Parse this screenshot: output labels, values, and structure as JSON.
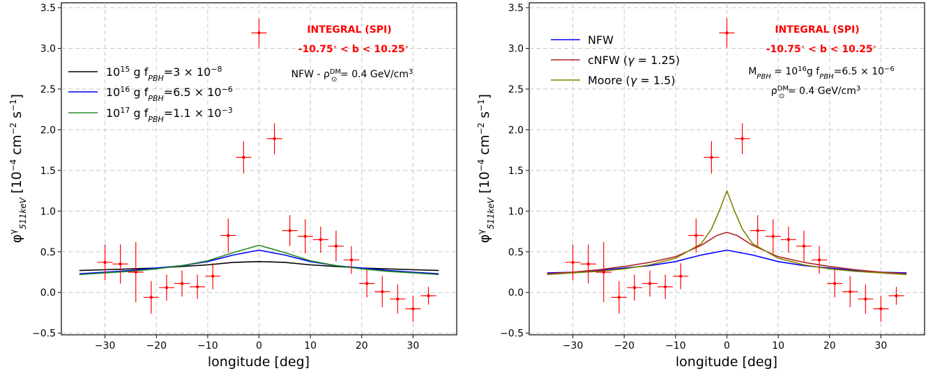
{
  "colors": {
    "data_points": "#ff0000",
    "annotation": "#ff0000",
    "grid": "#c8c8c8"
  },
  "chart_data": [
    {
      "type": "line",
      "xlabel": "longitude [deg]",
      "ylabel": "φ^γ_511keV [10^-4 cm^-2 s^-1]",
      "xlim": [
        -38.5,
        38.5
      ],
      "ylim": [
        -0.52,
        3.56
      ],
      "xticks": [
        -30,
        -20,
        -10,
        0,
        10,
        20,
        30
      ],
      "xtick_labels": [
        "−30",
        "−20",
        "−10",
        "0",
        "10",
        "20",
        "30"
      ],
      "yticks": [
        -0.5,
        0.0,
        0.5,
        1.0,
        1.5,
        2.0,
        2.5,
        3.0,
        3.5
      ],
      "ytick_labels": [
        "−0.5",
        "0.0",
        "0.5",
        "1.0",
        "1.5",
        "2.0",
        "2.5",
        "3.0",
        "3.5"
      ],
      "grid": true,
      "legend_position": "upper-left",
      "annotations": {
        "instrument": "INTEGRAL (SPI)",
        "latitude_range": "-10.75° < b < 10.25°",
        "profile_note": "NFW - ρ⊙^DM = 0.4 GeV/cm³"
      },
      "series": [
        {
          "name": "10^15 g f_PBH=3×10^-8",
          "color": "#000000",
          "x": [
            -35,
            -30,
            -25,
            -20,
            -15,
            -10,
            -5,
            0,
            5,
            10,
            15,
            20,
            25,
            30,
            35
          ],
          "y": [
            0.27,
            0.28,
            0.29,
            0.3,
            0.32,
            0.34,
            0.37,
            0.38,
            0.37,
            0.34,
            0.32,
            0.3,
            0.29,
            0.28,
            0.27
          ]
        },
        {
          "name": "10^16 g f_PBH=6.5×10^-6",
          "color": "#0000ff",
          "x": [
            -35,
            -30,
            -25,
            -20,
            -15,
            -10,
            -5,
            0,
            5,
            10,
            15,
            20,
            25,
            30,
            35
          ],
          "y": [
            0.23,
            0.25,
            0.27,
            0.3,
            0.33,
            0.38,
            0.46,
            0.52,
            0.46,
            0.38,
            0.33,
            0.3,
            0.27,
            0.25,
            0.23
          ]
        },
        {
          "name": "10^17 g f_PBH=1.1×10^-3",
          "color": "#228b22",
          "x": [
            -35,
            -30,
            -25,
            -20,
            -15,
            -10,
            -5,
            0,
            5,
            10,
            15,
            20,
            25,
            30,
            35
          ],
          "y": [
            0.22,
            0.24,
            0.26,
            0.29,
            0.33,
            0.39,
            0.49,
            0.58,
            0.49,
            0.39,
            0.33,
            0.29,
            0.26,
            0.24,
            0.22
          ]
        }
      ],
      "data_points": {
        "x": [
          -30,
          -27,
          -24,
          -21,
          -18,
          -15,
          -12,
          -9,
          -6,
          -3,
          0,
          3,
          6,
          9,
          12,
          15,
          18,
          21,
          24,
          27,
          30,
          33
        ],
        "y": [
          0.37,
          0.35,
          0.25,
          -0.06,
          0.06,
          0.11,
          0.07,
          0.2,
          0.7,
          1.66,
          3.19,
          1.89,
          0.76,
          0.69,
          0.65,
          0.57,
          0.4,
          0.11,
          0.01,
          -0.08,
          -0.2,
          -0.04
        ],
        "yerr": [
          0.22,
          0.24,
          0.37,
          0.2,
          0.16,
          0.16,
          0.15,
          0.16,
          0.21,
          0.2,
          0.18,
          0.19,
          0.19,
          0.21,
          0.16,
          0.19,
          0.17,
          0.17,
          0.19,
          0.18,
          0.16,
          0.11
        ],
        "xerr": 1.5
      }
    },
    {
      "type": "line",
      "xlabel": "longitude [deg]",
      "ylabel": "φ^γ_511keV [10^-4 cm^-2 s^-1]",
      "xlim": [
        -38.5,
        38.5
      ],
      "ylim": [
        -0.52,
        3.56
      ],
      "xticks": [
        -30,
        -20,
        -10,
        0,
        10,
        20,
        30
      ],
      "xtick_labels": [
        "−30",
        "−20",
        "−10",
        "0",
        "10",
        "20",
        "30"
      ],
      "yticks": [
        -0.5,
        0.0,
        0.5,
        1.0,
        1.5,
        2.0,
        2.5,
        3.0,
        3.5
      ],
      "ytick_labels": [
        "−0.5",
        "0.0",
        "0.5",
        "1.0",
        "1.5",
        "2.0",
        "2.5",
        "3.0",
        "3.5"
      ],
      "grid": true,
      "legend_position": "upper-left",
      "annotations": {
        "instrument": "INTEGRAL (SPI)",
        "latitude_range": "-10.75° < b < 10.25°",
        "pbh_note": "M_PBH = 10^16 g  f_PBH=6.5×10^-6",
        "density_note": "ρ⊙^DM = 0.4 GeV/cm³"
      },
      "series": [
        {
          "name": "NFW",
          "color": "#0000ff",
          "x": [
            -35,
            -30,
            -25,
            -20,
            -15,
            -10,
            -5,
            0,
            5,
            10,
            15,
            20,
            25,
            30,
            35
          ],
          "y": [
            0.24,
            0.25,
            0.27,
            0.3,
            0.33,
            0.38,
            0.46,
            0.52,
            0.46,
            0.38,
            0.33,
            0.3,
            0.27,
            0.25,
            0.24
          ]
        },
        {
          "name": "cNFW (γ = 1.25)",
          "color": "#b22222",
          "x": [
            -35,
            -30,
            -25,
            -20,
            -15,
            -10,
            -5,
            -2,
            0,
            2,
            5,
            10,
            15,
            20,
            25,
            30,
            35
          ],
          "y": [
            0.23,
            0.25,
            0.28,
            0.32,
            0.37,
            0.44,
            0.58,
            0.7,
            0.74,
            0.7,
            0.58,
            0.44,
            0.37,
            0.32,
            0.28,
            0.25,
            0.23
          ]
        },
        {
          "name": "Moore (γ = 1.5)",
          "color": "#808000",
          "x": [
            -35,
            -30,
            -25,
            -20,
            -15,
            -10,
            -5,
            -3,
            -1.5,
            0,
            1.5,
            3,
            5,
            10,
            15,
            20,
            25,
            30,
            35
          ],
          "y": [
            0.22,
            0.24,
            0.26,
            0.29,
            0.34,
            0.42,
            0.6,
            0.78,
            1.0,
            1.25,
            1.0,
            0.78,
            0.6,
            0.42,
            0.34,
            0.29,
            0.26,
            0.24,
            0.22
          ]
        }
      ],
      "data_points": {
        "x": [
          -30,
          -27,
          -24,
          -21,
          -18,
          -15,
          -12,
          -9,
          -6,
          -3,
          0,
          3,
          6,
          9,
          12,
          15,
          18,
          21,
          24,
          27,
          30,
          33
        ],
        "y": [
          0.37,
          0.35,
          0.25,
          -0.06,
          0.06,
          0.11,
          0.07,
          0.2,
          0.7,
          1.66,
          3.19,
          1.89,
          0.76,
          0.69,
          0.65,
          0.57,
          0.4,
          0.11,
          0.01,
          -0.08,
          -0.2,
          -0.04
        ],
        "yerr": [
          0.22,
          0.24,
          0.37,
          0.2,
          0.16,
          0.16,
          0.15,
          0.16,
          0.21,
          0.2,
          0.18,
          0.19,
          0.19,
          0.21,
          0.16,
          0.19,
          0.17,
          0.17,
          0.19,
          0.18,
          0.16,
          0.11
        ],
        "xerr": 1.5
      }
    }
  ]
}
